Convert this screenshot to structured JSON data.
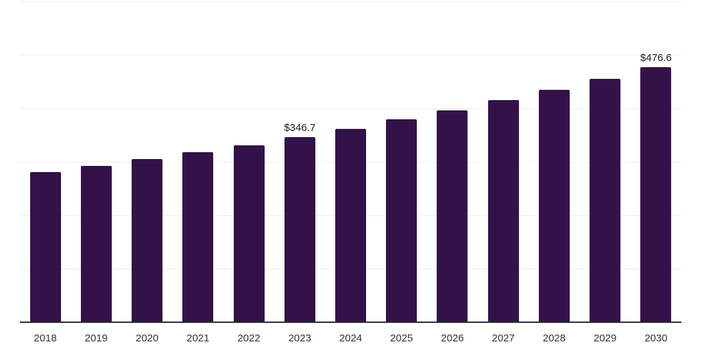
{
  "chart_data": {
    "type": "bar",
    "title": "",
    "xlabel": "",
    "ylabel": "",
    "legend": "none",
    "grid": true,
    "categories": [
      "2018",
      "2019",
      "2020",
      "2021",
      "2022",
      "2023",
      "2024",
      "2025",
      "2026",
      "2027",
      "2028",
      "2029",
      "2030"
    ],
    "values": [
      280.6,
      292.1,
      305.6,
      318.1,
      330.7,
      346.7,
      361.6,
      379.4,
      395.6,
      415.3,
      434.6,
      455.2,
      476.6
    ],
    "value_prefix": "$",
    "data_labels": {
      "2023": "$346.7",
      "2030": "$476.6"
    },
    "ylim": [
      0,
      600
    ],
    "grid_step": 100,
    "colors": {
      "bar": "#33124a",
      "gridline": "#efefef",
      "axis": "#2e2e2e",
      "tick_label": "#333333",
      "data_label": "#1a1a1a",
      "background": "#ffffff"
    }
  }
}
